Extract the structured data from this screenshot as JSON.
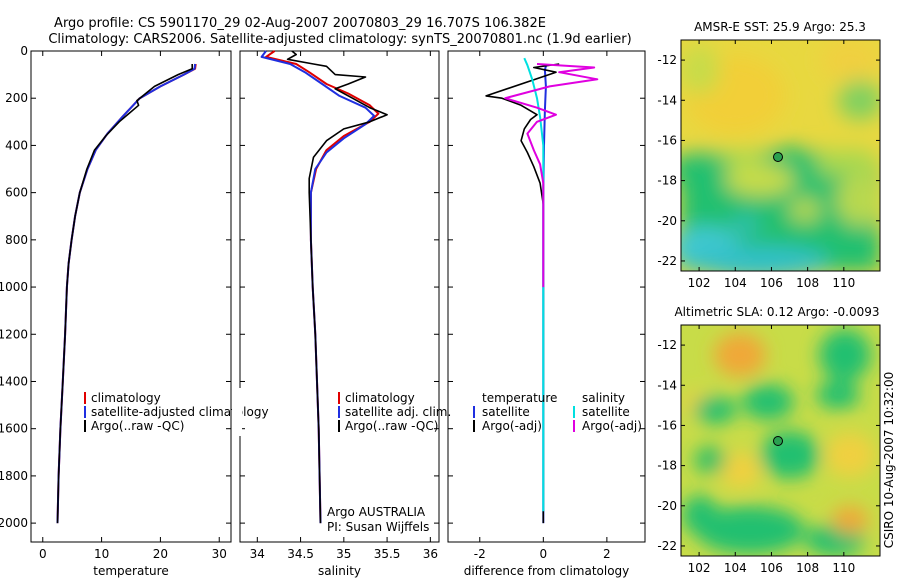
{
  "title": {
    "line1": "Argo profile: CS 5901170_29 02-Aug-2007 20070803_29 16.707S 106.382E",
    "line2": "Climatology: CARS2006. Satellite-adjusted climatology: synTS_20070801.nc (1.9d earlier)"
  },
  "side_label": "CSIRO 10-Aug-2007 10:32:00",
  "colors": {
    "red": "#e00000",
    "blue": "#1f2fe0",
    "black": "#000000",
    "cyan": "#00e0e0",
    "magenta": "#e000e0"
  },
  "chart_data": [
    {
      "id": "temperature",
      "type": "line",
      "xlabel": "temperature",
      "xlim": [
        -2,
        32
      ],
      "ylim": [
        2080,
        0
      ],
      "xticks": [
        0,
        10,
        20,
        30
      ],
      "yticks": [
        0,
        200,
        400,
        600,
        800,
        1000,
        1200,
        1400,
        1600,
        1800,
        2000
      ],
      "legend": {
        "placement": "lower-right",
        "entries": [
          "climatology",
          "satellite-adjusted climatology",
          "Argo(..raw -QC)"
        ]
      },
      "series": [
        {
          "name": "climatology",
          "color": "red",
          "points": [
            [
              26,
              55
            ],
            [
              25.9,
              75
            ],
            [
              24,
              100
            ],
            [
              20,
              150
            ],
            [
              16.5,
              200
            ],
            [
              13.5,
              280
            ],
            [
              11,
              350
            ],
            [
              9,
              420
            ],
            [
              7.6,
              500
            ],
            [
              6.3,
              600
            ],
            [
              5.5,
              700
            ],
            [
              4.9,
              800
            ],
            [
              4.4,
              900
            ],
            [
              4.1,
              1000
            ],
            [
              3.8,
              1200
            ],
            [
              3.4,
              1400
            ],
            [
              3,
              1600
            ],
            [
              2.7,
              1800
            ],
            [
              2.5,
              2000
            ]
          ]
        },
        {
          "name": "satellite-adjusted climatology",
          "color": "blue",
          "points": [
            [
              25.9,
              55
            ],
            [
              25.8,
              75
            ],
            [
              24,
              100
            ],
            [
              20,
              150
            ],
            [
              16.5,
              200
            ],
            [
              13.5,
              280
            ],
            [
              11,
              350
            ],
            [
              9,
              420
            ],
            [
              7.6,
              500
            ],
            [
              6.3,
              600
            ],
            [
              5.5,
              700
            ],
            [
              4.9,
              800
            ],
            [
              4.4,
              900
            ],
            [
              4.1,
              1000
            ],
            [
              3.8,
              1200
            ],
            [
              3.4,
              1400
            ],
            [
              3,
              1600
            ],
            [
              2.7,
              1800
            ],
            [
              2.5,
              2000
            ]
          ]
        },
        {
          "name": "Argo(..raw -QC)",
          "color": "black",
          "points": [
            [
              25.4,
              55
            ],
            [
              25.4,
              75
            ],
            [
              23,
              100
            ],
            [
              19,
              150
            ],
            [
              16,
              210
            ],
            [
              16.3,
              230
            ],
            [
              13,
              300
            ],
            [
              10.7,
              360
            ],
            [
              8.8,
              420
            ],
            [
              7.5,
              500
            ],
            [
              6.3,
              600
            ],
            [
              5.5,
              700
            ],
            [
              4.9,
              800
            ],
            [
              4.4,
              900
            ],
            [
              4.1,
              1000
            ],
            [
              3.8,
              1200
            ],
            [
              3.4,
              1400
            ],
            [
              3,
              1600
            ],
            [
              2.7,
              1800
            ],
            [
              2.5,
              2000
            ]
          ]
        }
      ]
    },
    {
      "id": "salinity",
      "type": "line",
      "xlabel": "salinity",
      "xlim": [
        33.8,
        36.1
      ],
      "ylim": [
        2080,
        0
      ],
      "xticks": [
        34,
        34.5,
        35,
        35.5,
        36
      ],
      "legend": {
        "placement": "lower-right",
        "entries": [
          "climatology",
          "satellite adj. clim.",
          "Argo(..raw -QC)"
        ]
      },
      "annotation": [
        "Argo AUSTRALIA",
        "PI: Susan Wijffels"
      ],
      "series": [
        {
          "name": "climatology",
          "color": "red",
          "points": [
            [
              34.2,
              0
            ],
            [
              34.1,
              25
            ],
            [
              34.45,
              55
            ],
            [
              34.6,
              90
            ],
            [
              34.8,
              140
            ],
            [
              35.05,
              180
            ],
            [
              35.3,
              230
            ],
            [
              35.4,
              265
            ],
            [
              35.3,
              300
            ],
            [
              35,
              360
            ],
            [
              34.8,
              420
            ],
            [
              34.68,
              500
            ],
            [
              34.62,
              600
            ],
            [
              34.62,
              800
            ],
            [
              34.64,
              1000
            ],
            [
              34.67,
              1200
            ],
            [
              34.69,
              1400
            ],
            [
              34.71,
              1600
            ],
            [
              34.72,
              1800
            ],
            [
              34.73,
              2000
            ]
          ]
        },
        {
          "name": "satellite adj. clim.",
          "color": "blue",
          "points": [
            [
              34.1,
              0
            ],
            [
              34.05,
              25
            ],
            [
              34.38,
              55
            ],
            [
              34.55,
              90
            ],
            [
              34.75,
              140
            ],
            [
              34.95,
              190
            ],
            [
              35.25,
              240
            ],
            [
              35.35,
              275
            ],
            [
              35.25,
              310
            ],
            [
              35,
              370
            ],
            [
              34.8,
              430
            ],
            [
              34.67,
              500
            ],
            [
              34.62,
              600
            ],
            [
              34.62,
              800
            ],
            [
              34.64,
              1000
            ],
            [
              34.67,
              1200
            ],
            [
              34.69,
              1400
            ],
            [
              34.71,
              1600
            ],
            [
              34.72,
              1800
            ],
            [
              34.73,
              2000
            ]
          ]
        },
        {
          "name": "Argo(..raw -QC)",
          "color": "black",
          "points": [
            [
              34.4,
              0
            ],
            [
              34.45,
              15
            ],
            [
              34.35,
              35
            ],
            [
              34.65,
              55
            ],
            [
              34.8,
              65
            ],
            [
              34.9,
              100
            ],
            [
              35.25,
              110
            ],
            [
              35.05,
              140
            ],
            [
              34.9,
              160
            ],
            [
              35.1,
              200
            ],
            [
              35.3,
              240
            ],
            [
              35.5,
              270
            ],
            [
              35.3,
              300
            ],
            [
              35,
              330
            ],
            [
              34.8,
              380
            ],
            [
              34.65,
              450
            ],
            [
              34.6,
              540
            ],
            [
              34.6,
              600
            ],
            [
              34.62,
              800
            ],
            [
              34.64,
              1000
            ],
            [
              34.67,
              1200
            ],
            [
              34.69,
              1400
            ],
            [
              34.71,
              1600
            ],
            [
              34.72,
              1800
            ],
            [
              34.73,
              2000
            ]
          ]
        }
      ]
    },
    {
      "id": "difference",
      "type": "line",
      "xlabel": "difference from climatology",
      "xlim": [
        -3,
        3.2
      ],
      "ylim": [
        2080,
        0
      ],
      "xticks": [
        -2,
        0,
        2
      ],
      "legend": {
        "placement": "lower",
        "headers": [
          "temperature",
          "salinity"
        ],
        "entries_left": [
          "satellite",
          "Argo(-adj)"
        ],
        "entries_right": [
          "satellite",
          "Argo(-adj)"
        ]
      },
      "series": [
        {
          "name": "temperature satellite",
          "color": "blue",
          "points": [
            [
              0.1,
              55
            ],
            [
              0.05,
              80
            ],
            [
              0.08,
              150
            ],
            [
              0.05,
              250
            ],
            [
              0.02,
              400
            ],
            [
              0,
              600
            ],
            [
              0,
              1000
            ],
            [
              0,
              1400
            ],
            [
              0,
              2000
            ]
          ]
        },
        {
          "name": "temperature Argo(-adj)",
          "color": "black",
          "points": [
            [
              0.5,
              55
            ],
            [
              -0.3,
              70
            ],
            [
              0.4,
              90
            ],
            [
              -1.8,
              190
            ],
            [
              -1.3,
              200
            ],
            [
              -0.7,
              230
            ],
            [
              -0.2,
              270
            ],
            [
              -0.4,
              290
            ],
            [
              -0.6,
              330
            ],
            [
              -0.7,
              380
            ],
            [
              -0.5,
              430
            ],
            [
              -0.3,
              490
            ],
            [
              -0.1,
              560
            ],
            [
              0,
              650
            ],
            [
              0,
              1000
            ],
            [
              0,
              2000
            ]
          ]
        },
        {
          "name": "salinity satellite",
          "color": "cyan",
          "points": [
            [
              -0.6,
              30
            ],
            [
              -0.5,
              60
            ],
            [
              -0.35,
              120
            ],
            [
              -0.2,
              200
            ],
            [
              -0.1,
              280
            ],
            [
              0,
              400
            ],
            [
              0,
              600
            ],
            [
              0,
              1000
            ],
            [
              0,
              1600
            ],
            [
              0,
              1950
            ]
          ]
        },
        {
          "name": "salinity Argo(-adj)",
          "color": "magenta",
          "points": [
            [
              -0.2,
              55
            ],
            [
              1.6,
              70
            ],
            [
              0.5,
              90
            ],
            [
              1.7,
              120
            ],
            [
              0.2,
              150
            ],
            [
              -1.2,
              200
            ],
            [
              -0.2,
              240
            ],
            [
              0.4,
              270
            ],
            [
              -0.2,
              300
            ],
            [
              -0.5,
              350
            ],
            [
              -0.3,
              420
            ],
            [
              -0.1,
              480
            ],
            [
              0,
              560
            ],
            [
              0,
              1000
            ]
          ]
        }
      ]
    },
    {
      "id": "sst-map",
      "type": "heatmap",
      "title": "AMSR-E SST: 25.9 Argo: 25.3",
      "xlim": [
        101,
        112
      ],
      "ylim": [
        -22.5,
        -11
      ],
      "xticks": [
        102,
        104,
        106,
        108,
        110
      ],
      "yticks": [
        -12,
        -14,
        -16,
        -18,
        -20,
        -22
      ],
      "marker": {
        "lon": 106.382,
        "lat": -16.707
      }
    },
    {
      "id": "sla-map",
      "type": "heatmap",
      "title": "Altimetric SLA: 0.12 Argo: -0.0093",
      "xlim": [
        101,
        112
      ],
      "ylim": [
        -22.5,
        -11
      ],
      "xticks": [
        102,
        104,
        106,
        108,
        110
      ],
      "yticks": [
        -12,
        -14,
        -16,
        -18,
        -20,
        -22
      ],
      "marker": {
        "lon": 106.382,
        "lat": -16.707
      }
    }
  ]
}
